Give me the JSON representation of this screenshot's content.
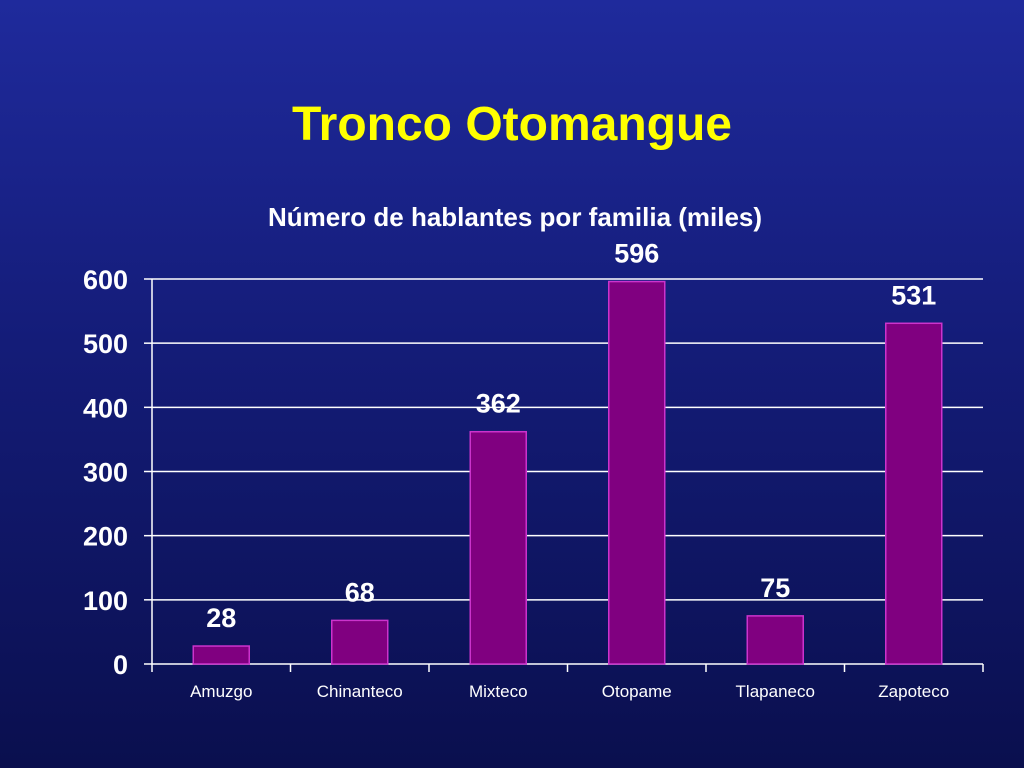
{
  "slide": {
    "title": "Tronco Otomangue"
  },
  "chart_data": {
    "type": "bar",
    "title": "Número de hablantes por familia (miles)",
    "xlabel": "",
    "ylabel": "",
    "categories": [
      "Amuzgo",
      "Chinanteco",
      "Mixteco",
      "Otopame",
      "Tlapaneco",
      "Zapoteco"
    ],
    "values": [
      28,
      68,
      362,
      596,
      75,
      531
    ],
    "data_labels": [
      "28",
      "68",
      "362",
      "596",
      "75",
      "531"
    ],
    "ylim": [
      0,
      600
    ],
    "yticks": [
      0,
      100,
      200,
      300,
      400,
      500,
      600
    ],
    "grid": true,
    "legend": "none",
    "colors": {
      "bar_fill": "#800080",
      "bar_stroke": "#cc33cc",
      "text": "#ffffff",
      "title": "#ffff00",
      "gridline": "#ffffff"
    }
  }
}
